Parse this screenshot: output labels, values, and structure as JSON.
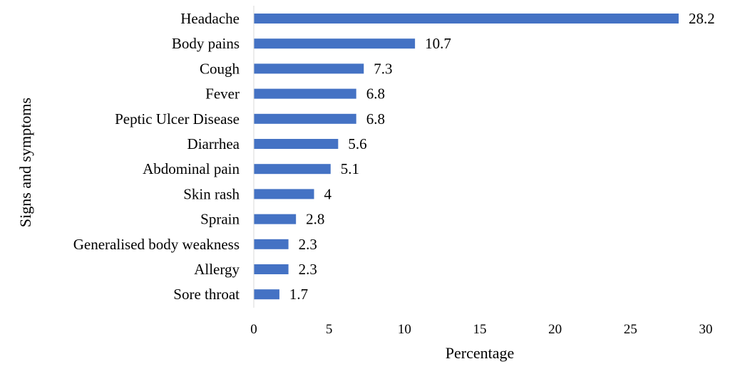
{
  "chart_data": {
    "type": "bar",
    "orientation": "horizontal",
    "categories": [
      "Headache",
      "Body pains",
      "Cough",
      "Fever",
      "Peptic Ulcer Disease",
      "Diarrhea",
      "Abdominal pain",
      "Skin rash",
      "Sprain",
      "Generalised body weakness",
      "Allergy",
      "Sore throat"
    ],
    "values": [
      28.2,
      10.7,
      7.3,
      6.8,
      6.8,
      5.6,
      5.1,
      4,
      2.8,
      2.3,
      2.3,
      1.7
    ],
    "value_labels": [
      "28.2",
      "10.7",
      "7.3",
      "6.8",
      "6.8",
      "5.6",
      "5.1",
      "4",
      "2.8",
      "2.3",
      "2.3",
      "1.7"
    ],
    "xlabel": "Percentage",
    "ylabel": "Signs and symptoms",
    "xlim": [
      0,
      30
    ],
    "xticks": [
      "0",
      "5",
      "10",
      "15",
      "20",
      "25",
      "30"
    ],
    "grid": false,
    "legend": "none",
    "bar_color": "#4472C4"
  }
}
